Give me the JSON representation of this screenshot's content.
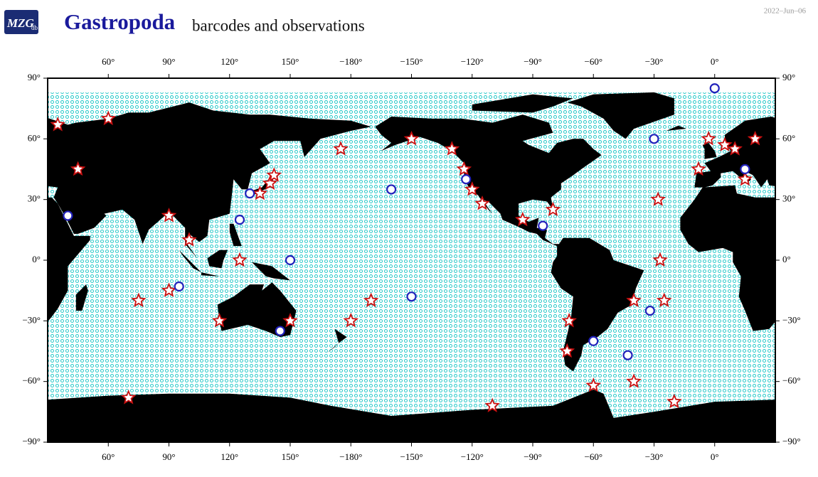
{
  "header": {
    "logo": "MZG",
    "logo_sub": "db",
    "title": "Gastropoda",
    "subtitle": "barcodes and observations",
    "date": "2022–Jun–06"
  },
  "map": {
    "xlim": [
      30,
      390
    ],
    "ylim": [
      -90,
      90
    ],
    "xticks": [
      {
        "value": 60,
        "label": "60°"
      },
      {
        "value": 90,
        "label": "90°"
      },
      {
        "value": 120,
        "label": "120°"
      },
      {
        "value": 150,
        "label": "150°"
      },
      {
        "value": -180,
        "label": "−180°"
      },
      {
        "value": -150,
        "label": "−150°"
      },
      {
        "value": -120,
        "label": "−120°"
      },
      {
        "value": -90,
        "label": "−90°"
      },
      {
        "value": -60,
        "label": "−60°"
      },
      {
        "value": -30,
        "label": "−30°"
      },
      {
        "value": 0,
        "label": "0°"
      }
    ],
    "yticks": [
      {
        "value": 90,
        "label": "90°"
      },
      {
        "value": 60,
        "label": "60°"
      },
      {
        "value": 30,
        "label": "30°"
      },
      {
        "value": 0,
        "label": "0°"
      },
      {
        "value": -30,
        "label": "−30°"
      },
      {
        "value": -60,
        "label": "−60°"
      },
      {
        "value": -90,
        "label": "−90°"
      }
    ],
    "markers": {
      "observations": {
        "color": "#cc1111",
        "points": [
          [
            5,
            57
          ],
          [
            10,
            55
          ],
          [
            -8,
            45
          ],
          [
            15,
            40
          ],
          [
            -3,
            60
          ],
          [
            20,
            60
          ],
          [
            140,
            38
          ],
          [
            142,
            42
          ],
          [
            135,
            33
          ],
          [
            -124,
            45
          ],
          [
            -120,
            35
          ],
          [
            -115,
            28
          ],
          [
            -80,
            25
          ],
          [
            -72,
            -30
          ],
          [
            -73,
            -45
          ],
          [
            -40,
            -20
          ],
          [
            -28,
            30
          ],
          [
            -27,
            0
          ],
          [
            -25,
            -20
          ],
          [
            150,
            -30
          ],
          [
            115,
            -30
          ],
          [
            -60,
            -62
          ],
          [
            -40,
            -60
          ],
          [
            -20,
            -70
          ],
          [
            70,
            -68
          ],
          [
            -110,
            -72
          ],
          [
            75,
            -20
          ],
          [
            90,
            -15
          ],
          [
            -150,
            60
          ],
          [
            175,
            55
          ],
          [
            -180,
            -30
          ],
          [
            -170,
            -20
          ],
          [
            35,
            67
          ],
          [
            45,
            45
          ],
          [
            60,
            70
          ],
          [
            90,
            22
          ],
          [
            100,
            10
          ],
          [
            125,
            0
          ],
          [
            -130,
            55
          ],
          [
            -95,
            20
          ]
        ]
      },
      "barcodes": {
        "color": "#2222bb",
        "points": [
          [
            -85,
            17
          ],
          [
            -30,
            60
          ],
          [
            -32,
            -25
          ],
          [
            125,
            20
          ],
          [
            150,
            0
          ],
          [
            -43,
            -47
          ],
          [
            -123,
            40
          ],
          [
            15,
            45
          ],
          [
            145,
            -35
          ],
          [
            -150,
            -18
          ],
          [
            0,
            85
          ],
          [
            -160,
            35
          ],
          [
            130,
            33
          ],
          [
            40,
            22
          ],
          [
            -60,
            -40
          ],
          [
            95,
            -13
          ]
        ]
      }
    }
  }
}
